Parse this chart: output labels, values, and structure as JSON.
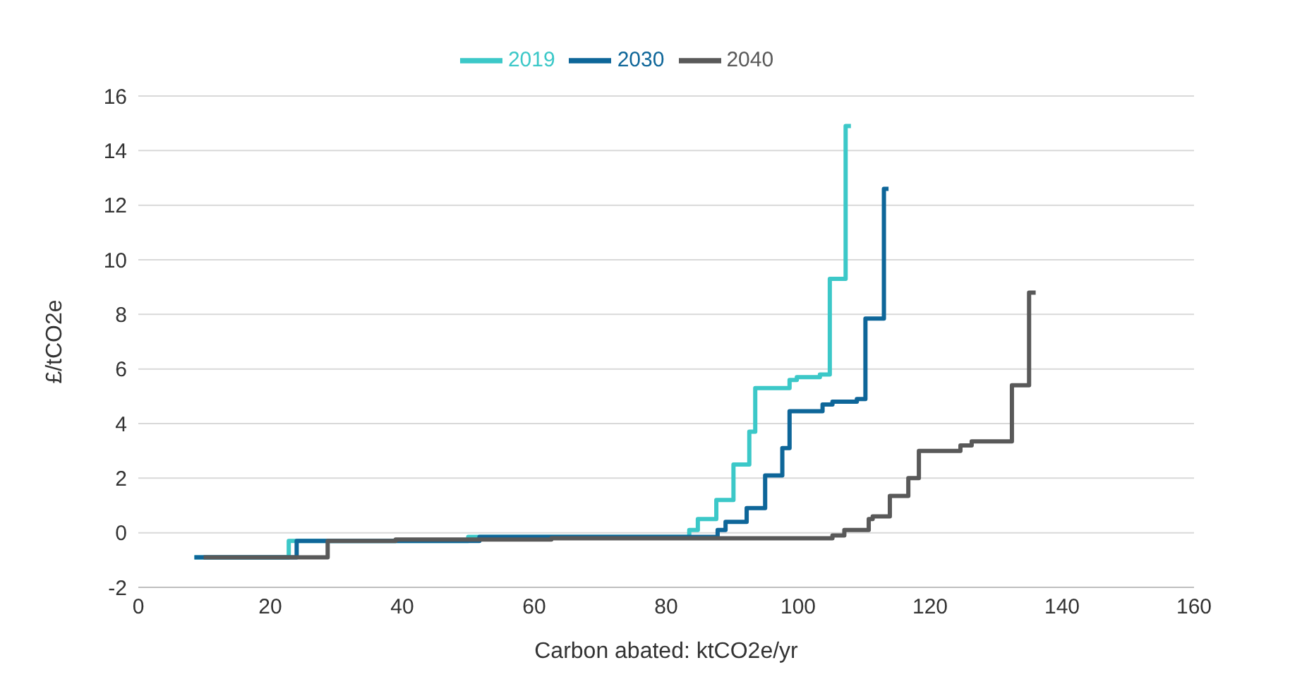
{
  "chart_data": {
    "type": "step",
    "xlabel": "Carbon abated: ktCO2e/yr",
    "ylabel": "£/tCO2e",
    "series": [
      {
        "name": "2019",
        "color": "#3cc8c8",
        "x": [
          8.5,
          22.8,
          50,
          83.5,
          84.8,
          87.6,
          90.2,
          92.6,
          93.5,
          98.7,
          99.8,
          103.3,
          104.8,
          107.2,
          108
        ],
        "values": [
          -0.9,
          -0.3,
          -0.15,
          0.1,
          0.5,
          1.2,
          2.5,
          3.7,
          5.3,
          5.6,
          5.7,
          5.8,
          9.3,
          14.9,
          14.9
        ]
      },
      {
        "name": "2030",
        "color": "#0e6699",
        "x": [
          8.5,
          24,
          51.7,
          87.8,
          89,
          92.2,
          95,
          97.6,
          98.7,
          103.7,
          105.2,
          108.9,
          110.2,
          113,
          113.7
        ],
        "values": [
          -0.9,
          -0.3,
          -0.15,
          0.1,
          0.4,
          0.9,
          2.1,
          3.1,
          4.45,
          4.7,
          4.8,
          4.9,
          7.85,
          12.6,
          12.6
        ]
      },
      {
        "name": "2040",
        "color": "#595959",
        "x": [
          9.9,
          28.7,
          39,
          62.6,
          105.2,
          107,
          110.7,
          111.3,
          113.9,
          116.7,
          118.3,
          124.6,
          126.3,
          132.4,
          135,
          136
        ],
        "values": [
          -0.9,
          -0.3,
          -0.25,
          -0.2,
          -0.1,
          0.1,
          0.5,
          0.6,
          1.35,
          2,
          3,
          3.2,
          3.35,
          5.4,
          8.8,
          8.8
        ]
      }
    ],
    "xlim": [
      0,
      160
    ],
    "xticks": [
      0,
      20,
      40,
      60,
      80,
      100,
      120,
      140,
      160
    ],
    "ylim": [
      -2,
      16
    ],
    "yticks": [
      -2,
      0,
      2,
      4,
      6,
      8,
      10,
      12,
      14,
      16
    ],
    "grid": "y",
    "legend": "top",
    "marker": "none",
    "line_style": "solid"
  }
}
